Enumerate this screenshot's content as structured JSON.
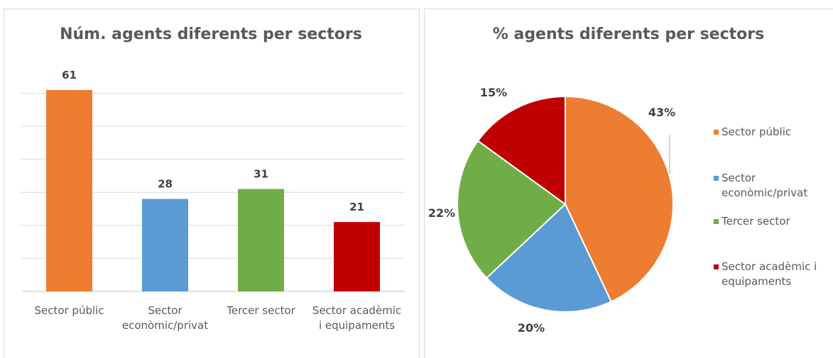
{
  "chart_data": [
    {
      "type": "bar",
      "title": "Núm. agents diferents per sectors",
      "categories": [
        "Sector públic",
        "Sector econòmic/privat",
        "Tercer sector",
        "Sector acadèmic i equipaments"
      ],
      "values": [
        61,
        28,
        31,
        21
      ],
      "colors": [
        "#ed7d31",
        "#5b9bd5",
        "#70ad47",
        "#c00000"
      ],
      "ylim": [
        0,
        70
      ],
      "yticks": [
        0,
        10,
        20,
        30,
        40,
        50,
        60
      ],
      "grid": true
    },
    {
      "type": "pie",
      "title": "% agents diferents per sectors",
      "categories": [
        "Sector públic",
        "Sector econòmic/privat",
        "Tercer sector",
        "Sector acadèmic i equipaments"
      ],
      "values": [
        43,
        20,
        22,
        15
      ],
      "value_labels": [
        "43%",
        "20%",
        "22%",
        "15%"
      ],
      "colors": [
        "#ed7d31",
        "#5b9bd5",
        "#70ad47",
        "#c00000"
      ],
      "legend": "right"
    }
  ]
}
